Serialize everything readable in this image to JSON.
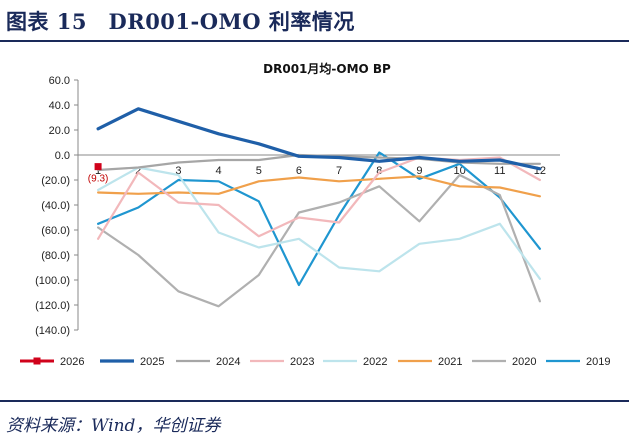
{
  "figure": {
    "title": "图表 15　DR001-OMO 利率情况",
    "source": "资料来源：Wind，华创证券"
  },
  "chart_data": {
    "type": "line",
    "title": "DR001月均-OMO BP",
    "xlabel": "",
    "ylabel": "",
    "categories": [
      "1",
      "2",
      "3",
      "4",
      "5",
      "6",
      "7",
      "8",
      "9",
      "10",
      "11",
      "12"
    ],
    "ylim": [
      -140,
      60
    ],
    "yticks": [
      60,
      40,
      20,
      0,
      -20,
      -40,
      -60,
      -80,
      -100,
      -120,
      -140
    ],
    "ytick_labels": [
      "60.0",
      "40.0",
      "20.0",
      "0.0",
      "(20.0)",
      "(40.0)",
      "(60.0)",
      "(80.0)",
      "(100.0)",
      "(120.0)",
      "(140.0)"
    ],
    "legend_position": "bottom",
    "annotation": {
      "series": "2026",
      "category": "1",
      "text": "(9.3)"
    },
    "series": [
      {
        "name": "2026",
        "color": "#d0021b",
        "marker": true,
        "values": [
          -9.3,
          null,
          null,
          null,
          null,
          null,
          null,
          null,
          null,
          null,
          null,
          null
        ]
      },
      {
        "name": "2025",
        "color": "#1f5fa8",
        "width": 3.2,
        "values": [
          21,
          37,
          27,
          17,
          9,
          -1,
          -2,
          -5,
          -2,
          -5,
          -4,
          -11
        ]
      },
      {
        "name": "2024",
        "color": "#a6a6a6",
        "width": 2.2,
        "values": [
          -12,
          -10,
          -6,
          -4,
          -4,
          0,
          -1,
          -2,
          -3,
          -6,
          -7,
          -7
        ]
      },
      {
        "name": "2023",
        "color": "#f2b8bb",
        "width": 2.2,
        "values": [
          -67,
          -14,
          -38,
          -40,
          -65,
          -50,
          -54,
          -14,
          -2,
          -4,
          -2,
          -20
        ]
      },
      {
        "name": "2022",
        "color": "#bde4ec",
        "width": 2.2,
        "values": [
          -28,
          -10,
          -16,
          -62,
          -74,
          -67,
          -90,
          -93,
          -71,
          -67,
          -55,
          -99
        ]
      },
      {
        "name": "2021",
        "color": "#f0a04b",
        "width": 2.2,
        "values": [
          -30,
          -31,
          -30,
          -31,
          -21,
          -18,
          -21,
          -19,
          -17,
          -25,
          -26,
          -33
        ]
      },
      {
        "name": "2020",
        "color": "#b0b0b0",
        "width": 2.2,
        "values": [
          -58,
          -80,
          -109,
          -121,
          -96,
          -46,
          -38,
          -25,
          -53,
          -16,
          -32,
          -117
        ]
      },
      {
        "name": "2019",
        "color": "#1f96d0",
        "width": 2.2,
        "values": [
          -55,
          -42,
          -20,
          -21,
          -37,
          -104,
          -48,
          2,
          -19,
          -7,
          -34,
          -75
        ]
      }
    ]
  }
}
